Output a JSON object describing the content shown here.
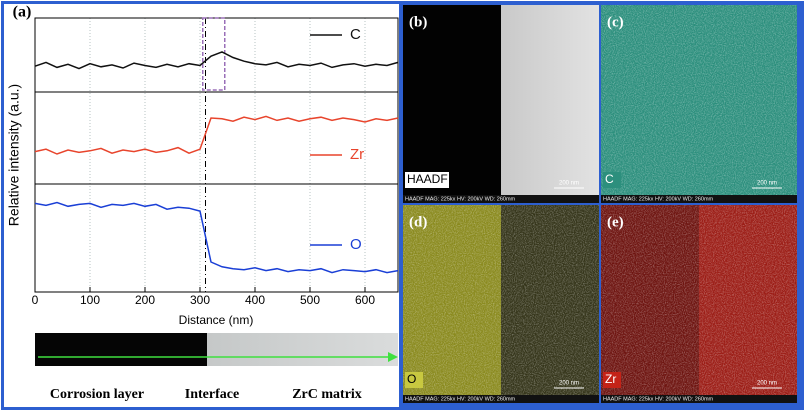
{
  "chart_data": {
    "type": "line",
    "panel_label": "(a)",
    "ylabel": "Relative intensity (a.u.)",
    "xlabel": "Distance (nm)",
    "x": [
      0,
      20,
      40,
      60,
      80,
      100,
      120,
      140,
      160,
      180,
      200,
      220,
      240,
      260,
      280,
      300,
      320,
      340,
      360,
      380,
      400,
      420,
      440,
      460,
      480,
      500,
      520,
      540,
      560,
      580,
      600,
      620,
      640,
      660
    ],
    "series": [
      {
        "name": "C",
        "color": "#111111",
        "values": [
          32,
          38,
          30,
          35,
          28,
          36,
          31,
          34,
          29,
          37,
          33,
          30,
          35,
          31,
          36,
          33,
          48,
          55,
          46,
          40,
          36,
          34,
          38,
          31,
          35,
          33,
          37,
          30,
          34,
          36,
          32,
          35,
          33,
          38
        ]
      },
      {
        "name": "Zr",
        "color": "#e8442c",
        "values": [
          33,
          36,
          30,
          35,
          32,
          34,
          37,
          31,
          35,
          33,
          36,
          32,
          34,
          38,
          31,
          36,
          75,
          74,
          71,
          76,
          73,
          77,
          72,
          75,
          71,
          74,
          76,
          72,
          75,
          73,
          70,
          74,
          72,
          75
        ]
      },
      {
        "name": "O",
        "color": "#1a3fd6",
        "values": [
          86,
          84,
          87,
          83,
          85,
          86,
          82,
          85,
          84,
          86,
          83,
          85,
          80,
          82,
          81,
          78,
          25,
          20,
          18,
          17,
          19,
          16,
          18,
          15,
          17,
          16,
          18,
          14,
          17,
          16,
          15,
          17,
          14,
          16
        ]
      }
    ],
    "xlim": [
      0,
      660
    ],
    "xticks": [
      0,
      100,
      200,
      300,
      400,
      500,
      600
    ],
    "ylim": [
      0,
      100
    ],
    "grid": true,
    "interface_line": 310,
    "highlight_box": [
      305,
      345
    ]
  },
  "strip": {
    "labels": [
      "Corrosion layer",
      "Interface",
      "ZrC matrix"
    ]
  },
  "images": [
    {
      "label": "(b)",
      "tag": "HAADF",
      "scale": "200 nm",
      "info": "HAADF  MAG: 225kx  HV: 200kV  WD: 260mm"
    },
    {
      "label": "(c)",
      "tag": "C",
      "scale": "200 nm",
      "info": "HAADF  MAG: 225kx  HV: 200kV  WD: 260mm"
    },
    {
      "label": "(d)",
      "tag": "O",
      "scale": "200 nm",
      "info": "HAADF  MAG: 225kx  HV: 200kV  WD: 260mm"
    },
    {
      "label": "(e)",
      "tag": "Zr",
      "scale": "200 nm",
      "info": "HAADF  MAG: 225kx  HV: 200kV  WD: 260mm"
    }
  ]
}
